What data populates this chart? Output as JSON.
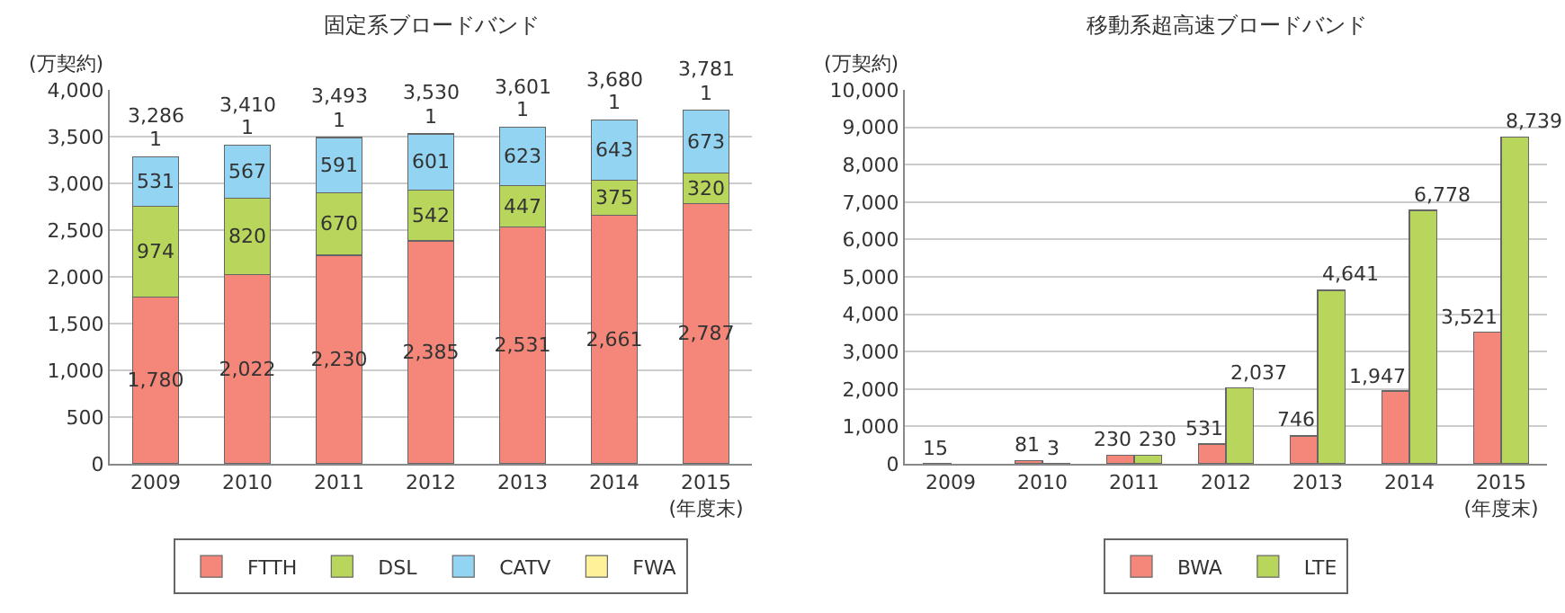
{
  "chart_data": [
    {
      "type": "bar",
      "title": "固定系ブロードバンド",
      "ylabel": "(万契約)",
      "stacked": true,
      "grid": "y",
      "legend": "bottom",
      "categories": [
        "2009",
        "2010",
        "2011",
        "2012",
        "2013",
        "2014",
        "2015\n(年度末)"
      ],
      "series": [
        {
          "name": "FTTH",
          "color": "#f4877a",
          "values": [
            1780,
            2022,
            2230,
            2385,
            2531,
            2661,
            2787
          ],
          "value_labels": [
            "1,780",
            "2,022",
            "2,230",
            "2,385",
            "2,531",
            "2,661",
            "2,787"
          ]
        },
        {
          "name": "DSL",
          "color": "#b8d65c",
          "values": [
            974,
            820,
            670,
            542,
            447,
            375,
            320
          ],
          "value_labels": [
            "974",
            "820",
            "670",
            "542",
            "447",
            "375",
            "320"
          ]
        },
        {
          "name": "CATV",
          "color": "#92d4f2",
          "values": [
            531,
            567,
            591,
            601,
            623,
            643,
            673
          ],
          "value_labels": [
            "531",
            "567",
            "591",
            "601",
            "623",
            "643",
            "673"
          ]
        },
        {
          "name": "FWA",
          "color": "#fdf29a",
          "values": [
            1,
            1,
            1,
            1,
            1,
            1,
            1
          ],
          "value_labels": [
            "1",
            "1",
            "1",
            "1",
            "1",
            "1",
            "1"
          ]
        }
      ],
      "totals": [
        "3,286",
        "3,410",
        "3,493",
        "3,530",
        "3,601",
        "3,680",
        "3,781"
      ],
      "ylim": [
        0,
        4000
      ],
      "yticks": [
        0,
        {
          "value": 500,
          "label": "500"
        },
        {
          "value": 1000,
          "label": "1,000"
        },
        {
          "value": 1500,
          "label": "1,500"
        },
        {
          "value": 2000,
          "label": "2,000"
        },
        {
          "value": 2500,
          "label": "2,500"
        },
        {
          "value": 3000,
          "label": "3,000"
        },
        {
          "value": 3500,
          "label": "3,500"
        },
        {
          "value": 4000,
          "label": "4,000"
        }
      ]
    },
    {
      "type": "bar",
      "title": "移動系超高速ブロードバンド",
      "ylabel": "(万契約)",
      "grid": "y",
      "legend": "bottom",
      "categories": [
        "2009",
        "2010",
        "2011",
        "2012",
        "2013",
        "2014",
        "2015\n(年度末)"
      ],
      "series": [
        {
          "name": "BWA",
          "color": "#f4877a",
          "values": [
            15,
            81,
            230,
            531,
            746,
            1947,
            3521
          ],
          "value_labels": [
            "15",
            "81",
            "230",
            "531",
            "746",
            "1,947",
            "3,521"
          ]
        },
        {
          "name": "LTE",
          "color": "#b8d65c",
          "values": [
            null,
            3,
            230,
            2037,
            4641,
            6778,
            8739
          ],
          "value_labels": [
            null,
            "3",
            "230",
            "2,037",
            "4,641",
            "6,778",
            "8,739"
          ]
        }
      ],
      "ylim": [
        0,
        10000
      ],
      "yticks": [
        0,
        {
          "value": 1000,
          "label": "1,000"
        },
        {
          "value": 2000,
          "label": "2,000"
        },
        {
          "value": 3000,
          "label": "3,000"
        },
        {
          "value": 4000,
          "label": "4,000"
        },
        {
          "value": 5000,
          "label": "5,000"
        },
        {
          "value": 6000,
          "label": "6,000"
        },
        {
          "value": 7000,
          "label": "7,000"
        },
        {
          "value": 8000,
          "label": "8,000"
        },
        {
          "value": 9000,
          "label": "9,000"
        },
        {
          "value": 10000,
          "label": "10,000"
        }
      ]
    }
  ]
}
